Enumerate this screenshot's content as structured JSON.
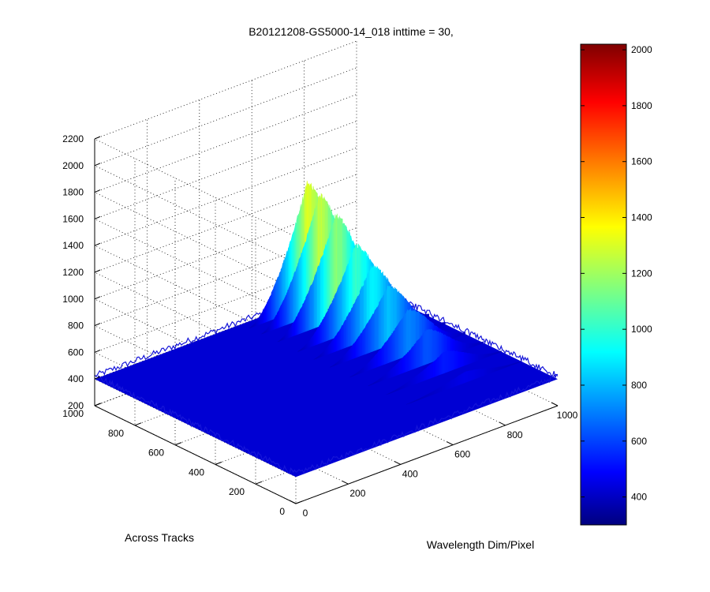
{
  "chart_data": {
    "type": "surface",
    "title": "B20121208-GS5000-14_018 inttime = 30,",
    "xlabel": "Wavelength Dim/Pixel",
    "ylabel": "Across Tracks",
    "zlabel": "",
    "xlim": [
      0,
      1000
    ],
    "ylim": [
      0,
      1000
    ],
    "zlim": [
      200,
      2200
    ],
    "xticks": [
      "0",
      "200",
      "400",
      "600",
      "800",
      "1000"
    ],
    "yticks": [
      "0",
      "200",
      "400",
      "600",
      "800",
      "1000"
    ],
    "zticks": [
      "200",
      "400",
      "600",
      "800",
      "1000",
      "1200",
      "1400",
      "1600",
      "1800",
      "2000",
      "2200"
    ],
    "grid": true,
    "colormap": "jet",
    "colorbar": {
      "range": [
        300,
        2020
      ],
      "ticks": [
        "400",
        "600",
        "800",
        "1000",
        "1200",
        "1400",
        "1600",
        "1800",
        "2000"
      ],
      "placement": "right"
    },
    "surface": {
      "baseline": 400,
      "peak_value": 1350,
      "peak_wavelength_pixel": 780,
      "peak_track": 960,
      "wavelength_span": [
        560,
        1000
      ],
      "stripe_count": 10,
      "stripe_amplitudes": [
        1350,
        1300,
        1200,
        1050,
        950,
        850,
        750,
        660,
        560,
        480
      ],
      "stripe_tracks": [
        960,
        900,
        820,
        720,
        640,
        560,
        460,
        370,
        280,
        180
      ]
    }
  }
}
